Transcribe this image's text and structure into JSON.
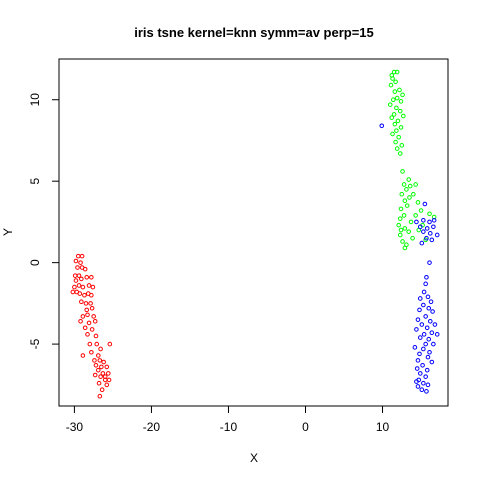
{
  "chart_data": {
    "type": "scatter",
    "title": "iris tsne kernel=knn symm=av perp=15",
    "xlabel": "X",
    "ylabel": "Y",
    "xlim": [
      -32,
      18.5
    ],
    "ylim": [
      -8.8,
      12.5
    ],
    "xticks": [
      -30,
      -20,
      -10,
      0,
      10
    ],
    "yticks": [
      -5,
      0,
      5,
      10
    ],
    "grid": false,
    "legend": "none",
    "marker": "open-circle",
    "series": [
      {
        "color": "#ff0000",
        "points": [
          [
            -29.5,
            0.4
          ],
          [
            -29.0,
            0.4
          ],
          [
            -29.8,
            0.1
          ],
          [
            -29.2,
            0.0
          ],
          [
            -29.6,
            -0.3
          ],
          [
            -29.0,
            -0.3
          ],
          [
            -28.6,
            -0.4
          ],
          [
            -29.9,
            -0.8
          ],
          [
            -29.4,
            -0.8
          ],
          [
            -29.8,
            -1.1
          ],
          [
            -29.1,
            -1.0
          ],
          [
            -28.4,
            -0.9
          ],
          [
            -27.8,
            -0.9
          ],
          [
            -30.0,
            -1.5
          ],
          [
            -29.4,
            -1.4
          ],
          [
            -28.9,
            -1.5
          ],
          [
            -28.1,
            -1.4
          ],
          [
            -27.6,
            -1.5
          ],
          [
            -29.7,
            -1.8
          ],
          [
            -29.3,
            -1.9
          ],
          [
            -28.7,
            -2.0
          ],
          [
            -28.2,
            -1.9
          ],
          [
            -27.8,
            -2.0
          ],
          [
            -30.2,
            -1.8
          ],
          [
            -29.1,
            -2.4
          ],
          [
            -28.5,
            -2.5
          ],
          [
            -27.9,
            -2.5
          ],
          [
            -28.4,
            -2.9
          ],
          [
            -27.7,
            -2.8
          ],
          [
            -28.9,
            -3.3
          ],
          [
            -28.3,
            -3.2
          ],
          [
            -27.5,
            -3.3
          ],
          [
            -29.2,
            -3.6
          ],
          [
            -28.1,
            -3.7
          ],
          [
            -27.3,
            -3.6
          ],
          [
            -28.6,
            -4.0
          ],
          [
            -27.7,
            -4.1
          ],
          [
            -27.2,
            -4.5
          ],
          [
            -28.3,
            -4.4
          ],
          [
            -28.0,
            -5.0
          ],
          [
            -27.1,
            -5.0
          ],
          [
            -26.6,
            -5.3
          ],
          [
            -27.8,
            -5.5
          ],
          [
            -26.9,
            -5.7
          ],
          [
            -28.9,
            -5.7
          ],
          [
            -27.4,
            -6.0
          ],
          [
            -26.7,
            -6.0
          ],
          [
            -26.2,
            -6.1
          ],
          [
            -25.4,
            -5.0
          ],
          [
            -27.2,
            -6.3
          ],
          [
            -26.5,
            -6.4
          ],
          [
            -25.8,
            -6.4
          ],
          [
            -26.9,
            -6.6
          ],
          [
            -26.3,
            -6.8
          ],
          [
            -25.6,
            -6.8
          ],
          [
            -27.3,
            -6.9
          ],
          [
            -26.6,
            -7.0
          ],
          [
            -26.0,
            -7.2
          ],
          [
            -25.5,
            -7.2
          ],
          [
            -26.8,
            -7.4
          ],
          [
            -25.8,
            -7.5
          ],
          [
            -26.4,
            -7.8
          ],
          [
            -26.7,
            -8.2
          ],
          [
            -26.0,
            -7.0
          ]
        ]
      },
      {
        "color": "#00ff00",
        "points": [
          [
            11.2,
            11.5
          ],
          [
            11.5,
            11.7
          ],
          [
            11.9,
            11.7
          ],
          [
            11.3,
            11.3
          ],
          [
            11.7,
            11.1
          ],
          [
            11.1,
            10.9
          ],
          [
            12.2,
            10.6
          ],
          [
            11.6,
            10.5
          ],
          [
            12.6,
            10.3
          ],
          [
            11.9,
            10.1
          ],
          [
            11.4,
            10.0
          ],
          [
            12.4,
            9.9
          ],
          [
            11.0,
            9.7
          ],
          [
            11.8,
            9.5
          ],
          [
            12.3,
            9.3
          ],
          [
            11.5,
            9.1
          ],
          [
            12.7,
            9.0
          ],
          [
            11.2,
            8.9
          ],
          [
            12.0,
            8.7
          ],
          [
            11.6,
            8.5
          ],
          [
            12.4,
            8.3
          ],
          [
            11.8,
            8.1
          ],
          [
            11.3,
            7.9
          ],
          [
            12.1,
            7.7
          ],
          [
            11.7,
            7.4
          ],
          [
            12.5,
            7.2
          ],
          [
            11.9,
            7.0
          ],
          [
            12.3,
            6.7
          ],
          [
            12.6,
            5.6
          ],
          [
            13.4,
            5.1
          ],
          [
            12.8,
            4.8
          ],
          [
            13.6,
            4.7
          ],
          [
            14.3,
            4.8
          ],
          [
            13.1,
            4.5
          ],
          [
            12.5,
            4.2
          ],
          [
            14.0,
            4.2
          ],
          [
            13.5,
            4.0
          ],
          [
            12.9,
            3.8
          ],
          [
            14.6,
            3.7
          ],
          [
            13.2,
            3.5
          ],
          [
            12.4,
            3.3
          ],
          [
            15.0,
            3.2
          ],
          [
            16.1,
            3.0
          ],
          [
            12.8,
            2.9
          ],
          [
            14.3,
            2.9
          ],
          [
            16.7,
            2.8
          ],
          [
            12.3,
            2.7
          ],
          [
            13.7,
            2.5
          ],
          [
            15.2,
            2.3
          ],
          [
            12.1,
            2.3
          ],
          [
            12.9,
            2.1
          ],
          [
            14.7,
            2.0
          ],
          [
            13.4,
            1.9
          ],
          [
            12.3,
            1.7
          ],
          [
            13.9,
            1.5
          ],
          [
            15.6,
            1.4
          ],
          [
            12.6,
            1.3
          ],
          [
            13.1,
            1.1
          ],
          [
            12.9,
            0.9
          ],
          [
            12.4,
            2.0
          ]
        ]
      },
      {
        "color": "#0000ff",
        "points": [
          [
            9.9,
            8.4
          ],
          [
            15.5,
            3.6
          ],
          [
            14.4,
            2.5
          ],
          [
            15.3,
            2.6
          ],
          [
            16.1,
            2.5
          ],
          [
            16.7,
            2.6
          ],
          [
            14.9,
            2.2
          ],
          [
            15.8,
            2.1
          ],
          [
            16.6,
            2.2
          ],
          [
            15.3,
            1.9
          ],
          [
            16.2,
            1.8
          ],
          [
            17.1,
            1.7
          ],
          [
            15.7,
            1.5
          ],
          [
            16.4,
            1.4
          ],
          [
            15.1,
            1.2
          ],
          [
            16.1,
            0.0
          ],
          [
            15.7,
            -0.9
          ],
          [
            15.6,
            -1.3
          ],
          [
            15.4,
            -1.8
          ],
          [
            15.9,
            -2.1
          ],
          [
            14.9,
            -2.2
          ],
          [
            16.3,
            -2.4
          ],
          [
            15.3,
            -2.6
          ],
          [
            16.0,
            -2.8
          ],
          [
            14.8,
            -2.9
          ],
          [
            16.5,
            -3.0
          ],
          [
            15.6,
            -3.3
          ],
          [
            14.6,
            -3.5
          ],
          [
            16.2,
            -3.6
          ],
          [
            15.1,
            -3.8
          ],
          [
            16.8,
            -3.8
          ],
          [
            15.8,
            -4.0
          ],
          [
            14.4,
            -4.1
          ],
          [
            16.4,
            -4.3
          ],
          [
            15.4,
            -4.4
          ],
          [
            17.1,
            -4.4
          ],
          [
            14.9,
            -4.6
          ],
          [
            16.0,
            -4.7
          ],
          [
            15.6,
            -5.0
          ],
          [
            16.6,
            -5.0
          ],
          [
            14.2,
            -5.2
          ],
          [
            15.3,
            -5.3
          ],
          [
            16.1,
            -5.5
          ],
          [
            14.8,
            -5.6
          ],
          [
            15.9,
            -5.8
          ],
          [
            14.6,
            -6.0
          ],
          [
            16.4,
            -6.1
          ],
          [
            15.2,
            -6.3
          ],
          [
            14.5,
            -6.5
          ],
          [
            15.8,
            -6.6
          ],
          [
            14.9,
            -6.8
          ],
          [
            15.6,
            -7.0
          ],
          [
            14.7,
            -7.2
          ],
          [
            15.3,
            -7.4
          ],
          [
            15.9,
            -7.5
          ],
          [
            14.6,
            -7.6
          ],
          [
            15.1,
            -7.8
          ],
          [
            15.7,
            -7.9
          ],
          [
            14.4,
            -7.3
          ]
        ]
      }
    ]
  }
}
